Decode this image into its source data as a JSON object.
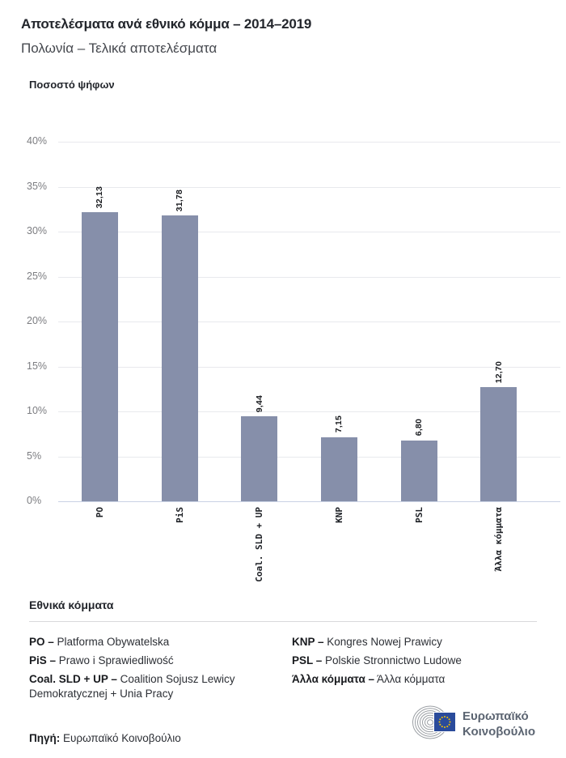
{
  "header": {
    "title": "Αποτελέσματα ανά εθνικό κόμμα – 2014–2019",
    "subtitle": "Πολωνία – Τελικά αποτελέσματα"
  },
  "chart_data": {
    "type": "bar",
    "title": "Ποσοστό ψήφων",
    "categories": [
      "PO",
      "PiS",
      "Coal. SLD + UP",
      "KNP",
      "PSL",
      "Άλλα κόμματα"
    ],
    "values": [
      32.13,
      31.78,
      9.44,
      7.15,
      6.8,
      12.7
    ],
    "value_labels": [
      "32,13",
      "31,78",
      "9,44",
      "7,15",
      "6,80",
      "12,70"
    ],
    "ylabel": "Ποσοστό ψήφων",
    "xlabel": "",
    "ylim": [
      0,
      40
    ],
    "ytick_step": 5,
    "ytick_suffix": "%",
    "grid": true,
    "legend_position": "none",
    "bar_color": "#868FAA"
  },
  "legend": {
    "heading": "Εθνικά κόμματα",
    "columns": [
      [
        {
          "key": "PO –",
          "label": "Platforma Obywatelska"
        },
        {
          "key": "PiS –",
          "label": "Prawo i Sprawiedliwość"
        },
        {
          "key": "Coal. SLD + UP –",
          "label": "Coalition Sojusz Lewicy Demokratycznej + Unia Pracy"
        }
      ],
      [
        {
          "key": "KNP –",
          "label": "Kongres Nowej Prawicy"
        },
        {
          "key": "PSL –",
          "label": "Polskie Stronnictwo Ludowe"
        },
        {
          "key": "Άλλα κόμματα –",
          "label": "Άλλα κόμματα"
        }
      ]
    ]
  },
  "footer": {
    "source_label": "Πηγή:",
    "source_value": "Ευρωπαϊκό Κοινοβούλιο",
    "logo_line1": "Ευρωπαϊκό",
    "logo_line2": "Κοινοβούλιο"
  },
  "colors": {
    "bar": "#868FAA",
    "gridline": "#E8E9ED",
    "axis_baseline": "#C9D2E4",
    "tick_text": "#7C7D81",
    "eu_flag_blue": "#2A4B9B",
    "eu_star_yellow": "#F5C400",
    "hemicycle_gray": "#9B9FA4",
    "logo_text_gray": "#5C6572"
  }
}
